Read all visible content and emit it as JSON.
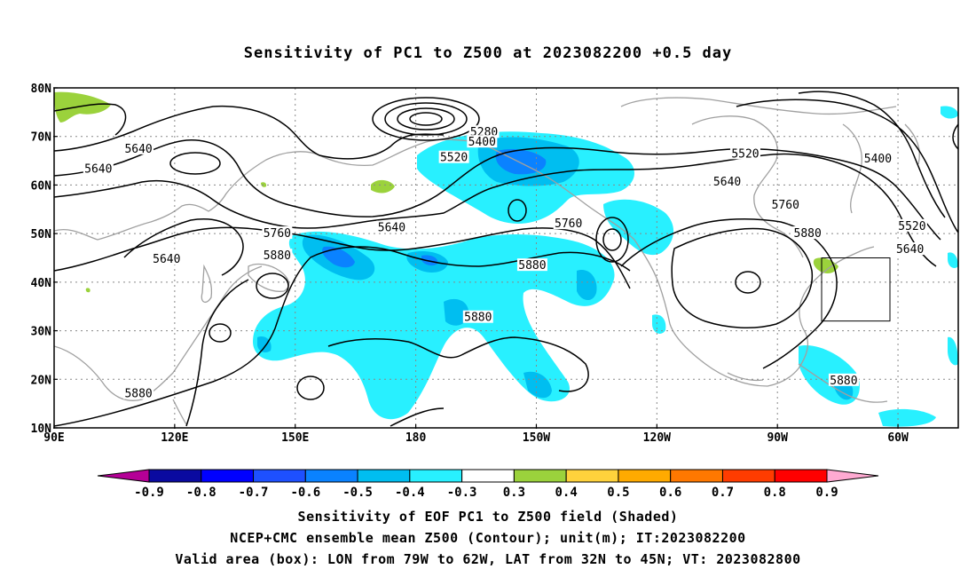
{
  "title": "Sensitivity of PC1 to Z500 at 2023082200 +0.5 day",
  "map": {
    "lat_labels": [
      "80N",
      "70N",
      "60N",
      "50N",
      "40N",
      "30N",
      "20N",
      "10N"
    ],
    "lon_labels": [
      "90E",
      "120E",
      "150E",
      "180",
      "150W",
      "120W",
      "90W",
      "60W"
    ],
    "lon_range": [
      90,
      315
    ],
    "lat_range": [
      10,
      80
    ],
    "grid": "dotted",
    "valid_box": {
      "lon_min_w": 79,
      "lon_max_w": 62,
      "lat_min": 32,
      "lat_max": 45
    },
    "contour_labels": [
      {
        "text": "5640",
        "lon": 111,
        "lat": 67.6
      },
      {
        "text": "5640",
        "lon": 101,
        "lat": 63.5
      },
      {
        "text": "5280",
        "lon": 197,
        "lat": 71
      },
      {
        "text": "5400",
        "lon": 196.5,
        "lat": 69
      },
      {
        "text": "5520",
        "lon": 189.5,
        "lat": 65.8
      },
      {
        "text": "5520",
        "lon": 262,
        "lat": 66.6
      },
      {
        "text": "5640",
        "lon": 257.5,
        "lat": 60.8
      },
      {
        "text": "5400",
        "lon": 295,
        "lat": 65.6
      },
      {
        "text": "5640",
        "lon": 174,
        "lat": 51.4
      },
      {
        "text": "5760",
        "lon": 218,
        "lat": 52.2
      },
      {
        "text": "5760",
        "lon": 272,
        "lat": 56.1
      },
      {
        "text": "5880",
        "lon": 277.5,
        "lat": 50.2
      },
      {
        "text": "5760",
        "lon": 145.5,
        "lat": 50.2
      },
      {
        "text": "5880",
        "lon": 145.5,
        "lat": 45.6
      },
      {
        "text": "5640",
        "lon": 118,
        "lat": 44.9
      },
      {
        "text": "5880",
        "lon": 209,
        "lat": 43.6
      },
      {
        "text": "5520",
        "lon": 303.5,
        "lat": 51.7
      },
      {
        "text": "5640",
        "lon": 303,
        "lat": 46.9
      },
      {
        "text": "5880",
        "lon": 195.5,
        "lat": 32.9
      },
      {
        "text": "5880",
        "lon": 111,
        "lat": 17.2
      },
      {
        "text": "5880",
        "lon": 286.5,
        "lat": 19.9
      }
    ]
  },
  "colorbar": {
    "labels": [
      "-0.9",
      "-0.8",
      "-0.7",
      "-0.6",
      "-0.5",
      "-0.4",
      "-0.3",
      "0.3",
      "0.4",
      "0.5",
      "0.6",
      "0.7",
      "0.8",
      "0.9"
    ],
    "colors": [
      "#b40096",
      "#0a0aa0",
      "#0000ff",
      "#1e50ff",
      "#0a82ff",
      "#00bef0",
      "#28f0ff",
      "#ffffff",
      "#9bd23c",
      "#ffd23c",
      "#ffaa00",
      "#ff7800",
      "#ff3c00",
      "#ff0000",
      "#ffaad2"
    ]
  },
  "footer": [
    "Sensitivity of EOF PC1 to Z500 field (Shaded)",
    "NCEP+CMC ensemble mean Z500 (Contour); unit(m); IT:2023082200",
    "Valid area (box): LON from 79W to 62W, LAT from 32N to 45N; VT: 2023082800"
  ]
}
